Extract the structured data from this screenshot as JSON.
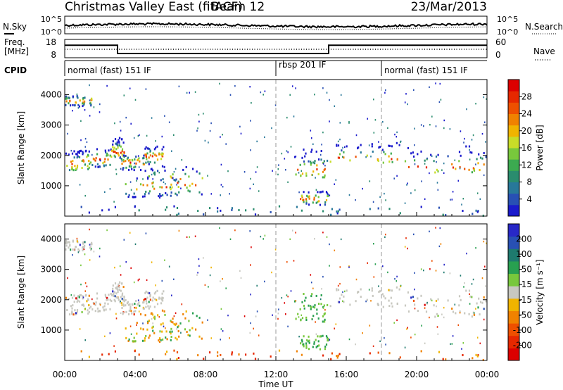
{
  "chart_data": {
    "type": "heatmap",
    "header": {
      "title": "Christmas Valley East (fitACF)",
      "beam": "Beam 12",
      "date": "23/Mar/2013"
    },
    "x_axis": {
      "label": "Time UT",
      "ticks": [
        "00:00",
        "04:00",
        "08:00",
        "12:00",
        "16:00",
        "20:00",
        "00:00"
      ],
      "range_hours": [
        0,
        24
      ]
    },
    "strips": {
      "noise": {
        "left_label": "N.Sky",
        "right_label": "N.Search",
        "left_ticks": [
          "10^5",
          "10^0"
        ],
        "right_ticks": [
          "10^5",
          "10^0"
        ]
      },
      "freq": {
        "left_label_1": "Freq.",
        "left_label_2": "[MHz]",
        "right_label": "Nave",
        "left_ticks": [
          "18",
          "8"
        ],
        "right_ticks": [
          "60",
          "0"
        ],
        "left_range": [
          8,
          18
        ],
        "freq_series": [
          {
            "t": 0,
            "mhz": 14.8
          },
          {
            "t": 3.0,
            "mhz": 14.8
          },
          {
            "t": 3.0,
            "mhz": 10.3
          },
          {
            "t": 15.0,
            "mhz": 10.3
          },
          {
            "t": 15.0,
            "mhz": 14.8
          },
          {
            "t": 24,
            "mhz": 14.8
          }
        ]
      },
      "cpid": {
        "label": "CPID",
        "segments": [
          {
            "text": "normal (fast) 151 IF",
            "start": 0
          },
          {
            "text": "rbsp 201 IF",
            "start": 12
          },
          {
            "text": "normal (fast) 151 IF",
            "start": 18
          }
        ]
      }
    },
    "panels": [
      {
        "name": "power",
        "ylabel": "Slant Range [km]",
        "yticks": [
          1000,
          2000,
          3000,
          4000
        ],
        "ylim": [
          0,
          4500
        ],
        "colorbar": {
          "label": "Power [dB]",
          "ticks": [
            "4",
            "8",
            "12",
            "16",
            "20",
            "24",
            "28"
          ],
          "colors": [
            "#1a1acc",
            "#2850b4",
            "#28789a",
            "#2a8c6e",
            "#3caa50",
            "#78c83c",
            "#c8dc28",
            "#f0b400",
            "#f08200",
            "#ee5000",
            "#e62800",
            "#dc0000"
          ]
        }
      },
      {
        "name": "velocity",
        "ylabel": "Slant Range [km]",
        "yticks": [
          1000,
          2000,
          3000,
          4000
        ],
        "ylim": [
          0,
          4500
        ],
        "colorbar": {
          "label": "Velocity [m s⁻¹]",
          "ticks": [
            "200",
            "100",
            "50",
            "15",
            "-15",
            "-50",
            "-100",
            "-200"
          ],
          "colors": [
            "#2828c8",
            "#2850b4",
            "#1e7a6e",
            "#28a050",
            "#78c83c",
            "#c8c8c0",
            "#f0b400",
            "#f08200",
            "#ee5000",
            "#e62800",
            "#dc0000"
          ]
        }
      }
    ],
    "scatter_bands": [
      {
        "t0": 0.0,
        "t1": 1.4,
        "r0": 1500,
        "r1": 2150,
        "peak": 1700
      },
      {
        "t0": 1.0,
        "t1": 2.6,
        "r0": 1600,
        "r1": 2200,
        "peak": 1850
      },
      {
        "t0": 2.6,
        "t1": 3.4,
        "r0": 1900,
        "r1": 2600,
        "peak": 2100
      },
      {
        "t0": 3.0,
        "t1": 4.5,
        "r0": 1500,
        "r1": 2000,
        "peak": 1750
      },
      {
        "t0": 4.5,
        "t1": 5.6,
        "r0": 1700,
        "r1": 2300,
        "peak": 1950
      },
      {
        "t0": 3.4,
        "t1": 6.5,
        "r0": 600,
        "r1": 1300,
        "peak": 950
      },
      {
        "t0": 4.5,
        "t1": 7.8,
        "r0": 700,
        "r1": 1650,
        "peak": 1100
      },
      {
        "t0": 0.0,
        "t1": 1.5,
        "r0": 3600,
        "r1": 3950,
        "peak": 3780
      },
      {
        "t0": 13.0,
        "t1": 15.0,
        "r0": 1250,
        "r1": 2200,
        "peak": 1500
      },
      {
        "t0": 15.0,
        "t1": 19.5,
        "r0": 1750,
        "r1": 2400,
        "peak": 1900
      },
      {
        "t0": 19.5,
        "t1": 24.0,
        "r0": 1400,
        "r1": 2300,
        "peak": 1600
      },
      {
        "t0": 0.0,
        "t1": 24.0,
        "r0": 0,
        "r1": 320,
        "peak": 150
      },
      {
        "t0": 13.2,
        "t1": 15.0,
        "r0": 350,
        "r1": 800,
        "peak": 550
      }
    ]
  }
}
